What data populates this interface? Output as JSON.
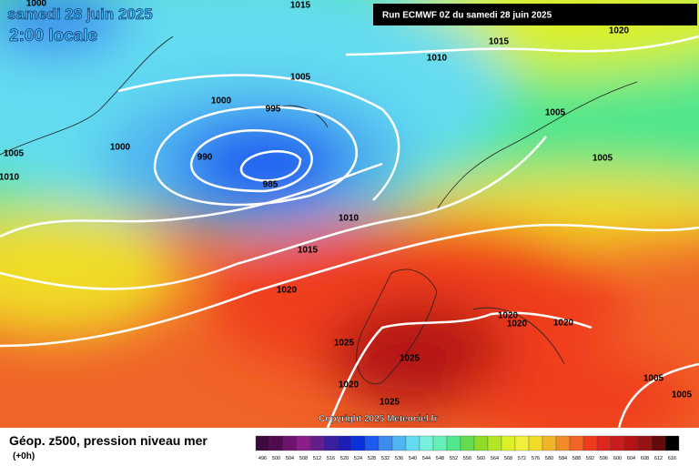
{
  "header": {
    "date": "samedi 28 juin 2025",
    "time": "2:00 locale",
    "run": "Run ECMWF 0Z du samedi 28 juin 2025"
  },
  "copyright": "Copyright 2025 Meteociel.fr",
  "footer": {
    "title": "Géop. z500, pression niveau mer",
    "lead": "(+0h)"
  },
  "isobar_labels": [
    "1000",
    "1015",
    "1015",
    "1020",
    "1010",
    "1005",
    "1000",
    "995",
    "1000",
    "990",
    "985",
    "1005",
    "1010",
    "1005",
    "1005",
    "1010",
    "1015",
    "1020",
    "1020",
    "1020",
    "1020",
    "1025",
    "1025",
    "1020",
    "1025",
    "1005",
    "1005"
  ],
  "colorbar": [
    {
      "label": "496",
      "color": "#3c0a3c"
    },
    {
      "label": "500",
      "color": "#500a50"
    },
    {
      "label": "504",
      "color": "#6e146e"
    },
    {
      "label": "508",
      "color": "#8c1e8c"
    },
    {
      "label": "512",
      "color": "#641e8c"
    },
    {
      "label": "516",
      "color": "#3c1ea0"
    },
    {
      "label": "520",
      "color": "#1e1eb4"
    },
    {
      "label": "524",
      "color": "#0a32dc"
    },
    {
      "label": "528",
      "color": "#1e5af0"
    },
    {
      "label": "532",
      "color": "#3c8cf0"
    },
    {
      "label": "536",
      "color": "#50b4f0"
    },
    {
      "label": "540",
      "color": "#64dcf0"
    },
    {
      "label": "544",
      "color": "#78f0dc"
    },
    {
      "label": "548",
      "color": "#64f0b4"
    },
    {
      "label": "552",
      "color": "#50e68c"
    },
    {
      "label": "556",
      "color": "#64dc50"
    },
    {
      "label": "560",
      "color": "#8cdc28"
    },
    {
      "label": "564",
      "color": "#b4e628"
    },
    {
      "label": "568",
      "color": "#dcf028"
    },
    {
      "label": "572",
      "color": "#f0f03c"
    },
    {
      "label": "576",
      "color": "#f0dc28"
    },
    {
      "label": "580",
      "color": "#f0b428"
    },
    {
      "label": "584",
      "color": "#f08c28"
    },
    {
      "label": "588",
      "color": "#f06428"
    },
    {
      "label": "592",
      "color": "#f03c1e"
    },
    {
      "label": "596",
      "color": "#dc281e"
    },
    {
      "label": "600",
      "color": "#c81e1e"
    },
    {
      "label": "604",
      "color": "#b41414"
    },
    {
      "label": "608",
      "color": "#961414"
    },
    {
      "label": "612",
      "color": "#640a0a"
    },
    {
      "label": "616",
      "color": "#000000"
    }
  ]
}
